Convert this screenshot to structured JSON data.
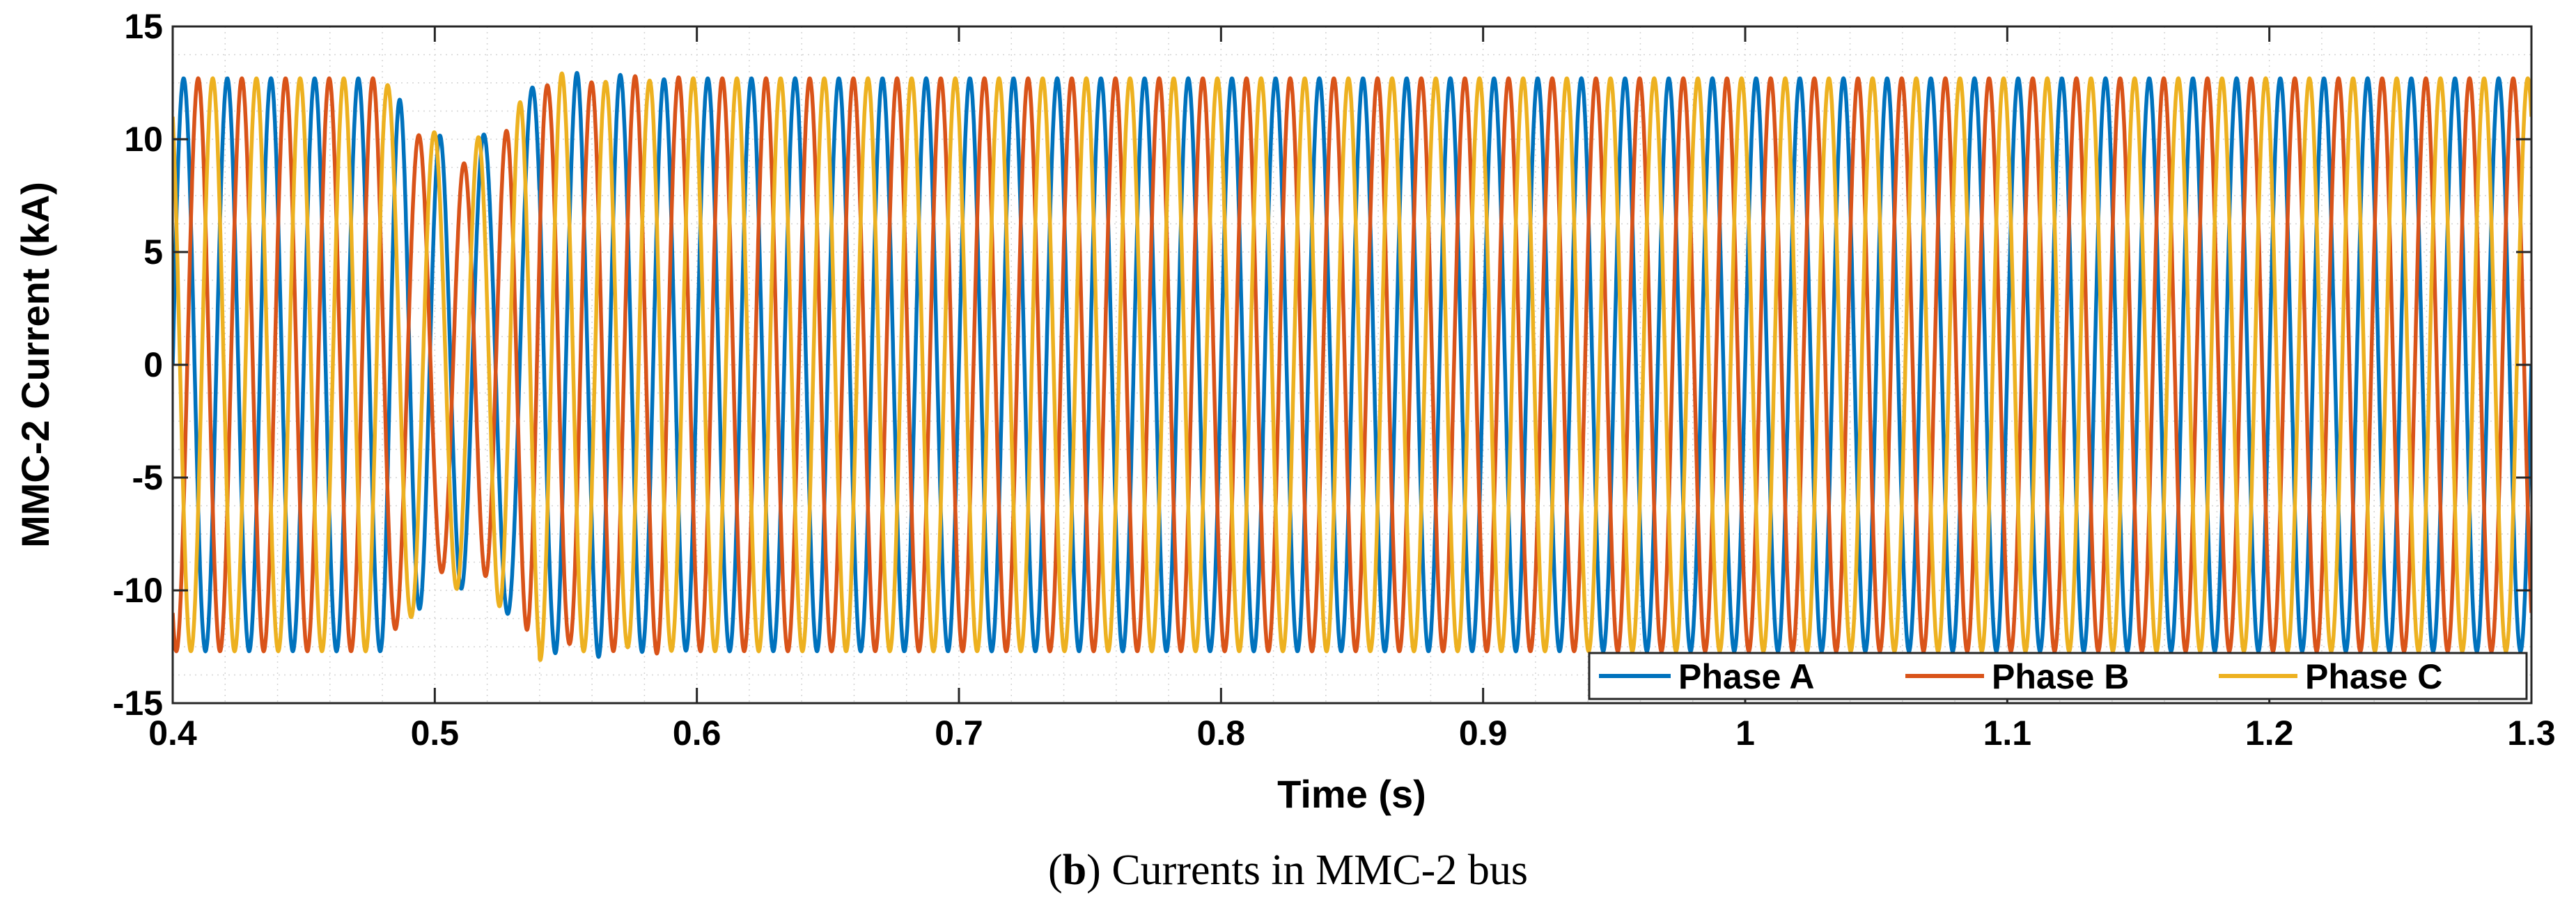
{
  "caption": {
    "letter": "b",
    "text": "Currents in MMC-2 bus"
  },
  "chart_data": {
    "type": "line",
    "title": "",
    "xlabel": "Time (s)",
    "ylabel": "MMC-2 Current (kA)",
    "xlim": [
      0.4,
      1.3
    ],
    "ylim": [
      -15,
      15
    ],
    "xticks": [
      0.4,
      0.5,
      0.6,
      0.7,
      0.8,
      0.9,
      1,
      1.1,
      1.2,
      1.3
    ],
    "xtick_labels": [
      "0.4",
      "0.5",
      "0.6",
      "0.7",
      "0.8",
      "0.9",
      "1",
      "1.1",
      "1.2",
      "1.3"
    ],
    "yticks": [
      15,
      10,
      5,
      0,
      -5,
      -10,
      -15
    ],
    "ytick_labels": [
      "15",
      "10",
      "5",
      "0",
      "-5",
      "-10",
      "-15"
    ],
    "grid": true,
    "legend_position": "bottom-right",
    "frequency_hz": 60,
    "steady_amplitude_ka": 12.7,
    "disturbance_window_s": [
      0.48,
      0.54
    ],
    "series": [
      {
        "name": "Phase A",
        "color": "#0072BD",
        "phase_deg": 0
      },
      {
        "name": "Phase B",
        "color": "#D95319",
        "phase_deg": -120
      },
      {
        "name": "Phase C",
        "color": "#EDB120",
        "phase_deg": 120
      }
    ]
  }
}
